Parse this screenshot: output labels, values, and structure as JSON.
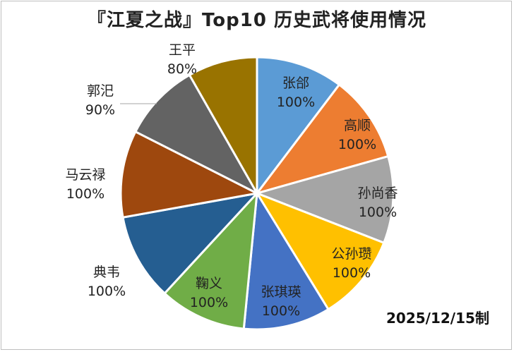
{
  "title": "『江夏之战』Top10 历史武将使用情况",
  "date_note": "2025/12/15制",
  "chart_data": {
    "type": "pie",
    "title": "『江夏之战』Top10 历史武将使用情况",
    "slices": [
      {
        "name": "张郃",
        "value": 100,
        "label": "100%",
        "color": "#5b9bd5"
      },
      {
        "name": "高顺",
        "value": 100,
        "label": "100%",
        "color": "#ed7d31"
      },
      {
        "name": "孙尚香",
        "value": 100,
        "label": "100%",
        "color": "#a5a5a5"
      },
      {
        "name": "公孙瓒",
        "value": 100,
        "label": "100%",
        "color": "#ffc000"
      },
      {
        "name": "张琪瑛",
        "value": 100,
        "label": "100%",
        "color": "#4472c4"
      },
      {
        "name": "鞠义",
        "value": 100,
        "label": "100%",
        "color": "#70ad47"
      },
      {
        "name": "典韦",
        "value": 100,
        "label": "100%",
        "color": "#255e91"
      },
      {
        "name": "马云禄",
        "value": 100,
        "label": "100%",
        "color": "#9e480e"
      },
      {
        "name": "郭汜",
        "value": 90,
        "label": "90%",
        "color": "#636363"
      },
      {
        "name": "王平",
        "value": 80,
        "label": "80%",
        "color": "#997300"
      }
    ]
  }
}
